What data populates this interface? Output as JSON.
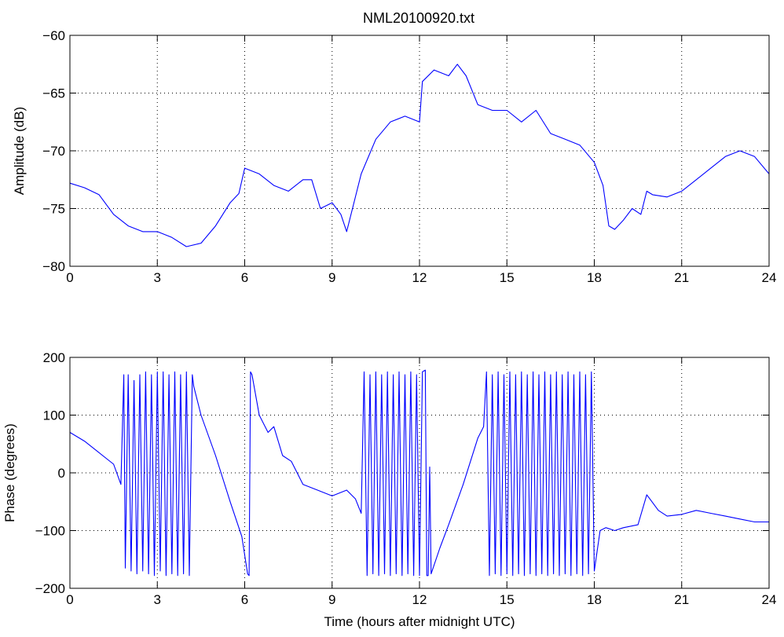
{
  "figure": {
    "title": "NML20100920.txt"
  },
  "chart_data": [
    {
      "type": "line",
      "title": "NML20100920.txt",
      "xlabel": "",
      "ylabel": "Amplitude (dB)",
      "xlim": [
        0,
        24
      ],
      "ylim": [
        -80,
        -60
      ],
      "xticks": [
        0,
        3,
        6,
        9,
        12,
        15,
        18,
        21,
        24
      ],
      "xtick_labels": [
        "0",
        "3",
        "6",
        "9",
        "12",
        "15",
        "18",
        "21",
        "24"
      ],
      "yticks": [
        -80,
        -75,
        -70,
        -65,
        -60
      ],
      "ytick_labels": [
        "−80",
        "−75",
        "−70",
        "−65",
        "−60"
      ],
      "grid": true,
      "color": "#0000ff",
      "x": [
        0,
        0.5,
        1,
        1.5,
        2,
        2.5,
        3,
        3.5,
        4,
        4.5,
        5,
        5.5,
        5.8,
        6,
        6.5,
        7,
        7.5,
        8,
        8.3,
        8.6,
        9,
        9.3,
        9.5,
        9.8,
        10,
        10.5,
        11,
        11.5,
        12,
        12.1,
        12.5,
        13,
        13.3,
        13.6,
        14,
        14.5,
        15,
        15.5,
        16,
        16.5,
        17,
        17.5,
        18,
        18.3,
        18.5,
        18.7,
        19,
        19.3,
        19.6,
        19.8,
        20,
        20.5,
        21,
        21.5,
        22,
        22.5,
        23,
        23.5,
        24
      ],
      "y": [
        -72.8,
        -73.2,
        -73.8,
        -75.5,
        -76.5,
        -77,
        -77,
        -77.5,
        -78.3,
        -78,
        -76.5,
        -74.5,
        -73.7,
        -71.5,
        -72,
        -73,
        -73.5,
        -72.5,
        -72.5,
        -75,
        -74.5,
        -75.5,
        -77,
        -74,
        -72,
        -69,
        -67.5,
        -67,
        -67.5,
        -64,
        -63,
        -63.5,
        -62.5,
        -63.5,
        -66,
        -66.5,
        -66.5,
        -67.5,
        -66.5,
        -68.5,
        -69,
        -69.5,
        -71,
        -73,
        -76.5,
        -76.8,
        -76,
        -75,
        -75.5,
        -73.5,
        -73.8,
        -74,
        -73.5,
        -72.5,
        -71.5,
        -70.5,
        -70,
        -70.5,
        -72
      ]
    },
    {
      "type": "line",
      "title": "",
      "xlabel": "Time (hours after midnight UTC)",
      "ylabel": "Phase (degrees)",
      "xlim": [
        0,
        24
      ],
      "ylim": [
        -200,
        200
      ],
      "xticks": [
        0,
        3,
        6,
        9,
        12,
        15,
        18,
        21,
        24
      ],
      "xtick_labels": [
        "0",
        "3",
        "6",
        "9",
        "12",
        "15",
        "18",
        "21",
        "24"
      ],
      "yticks": [
        -200,
        -100,
        0,
        100,
        200
      ],
      "ytick_labels": [
        "−200",
        "−100",
        "0",
        "100",
        "200"
      ],
      "grid": true,
      "color": "#0000ff",
      "x": [
        0,
        0.5,
        1,
        1.5,
        1.75,
        1.85,
        1.9,
        2.0,
        2.1,
        2.2,
        2.3,
        2.4,
        2.5,
        2.6,
        2.7,
        2.8,
        2.9,
        3.0,
        3.1,
        3.2,
        3.3,
        3.4,
        3.5,
        3.6,
        3.7,
        3.8,
        3.9,
        4.0,
        4.1,
        4.2,
        4.25,
        4.5,
        5,
        5.5,
        5.9,
        6.1,
        6.15,
        6.2,
        6.25,
        6.5,
        6.8,
        7,
        7.3,
        7.6,
        8,
        8.5,
        9,
        9.5,
        9.8,
        10.0,
        10.1,
        10.2,
        10.3,
        10.4,
        10.5,
        10.6,
        10.7,
        10.8,
        10.9,
        11.0,
        11.1,
        11.2,
        11.3,
        11.4,
        11.5,
        11.6,
        11.7,
        11.8,
        11.9,
        12.0,
        12.1,
        12.2,
        12.25,
        12.3,
        12.35,
        12.4,
        12.7,
        13,
        13.5,
        14,
        14.2,
        14.3,
        14.4,
        14.5,
        14.6,
        14.7,
        14.8,
        14.9,
        15.0,
        15.1,
        15.2,
        15.3,
        15.4,
        15.5,
        15.6,
        15.7,
        15.8,
        15.9,
        16.0,
        16.1,
        16.2,
        16.3,
        16.4,
        16.5,
        16.6,
        16.7,
        16.8,
        16.9,
        17.0,
        17.1,
        17.2,
        17.3,
        17.4,
        17.5,
        17.6,
        17.7,
        17.8,
        17.9,
        18.0,
        18.2,
        18.4,
        18.7,
        19,
        19.5,
        19.8,
        20.2,
        20.5,
        21,
        21.5,
        22,
        22.5,
        23,
        23.5,
        24
      ],
      "y": [
        70,
        55,
        35,
        15,
        -20,
        170,
        -165,
        170,
        -170,
        160,
        -175,
        170,
        -170,
        175,
        -175,
        170,
        -178,
        175,
        -170,
        175,
        -178,
        170,
        -175,
        175,
        -178,
        170,
        -175,
        175,
        -178,
        170,
        150,
        100,
        30,
        -50,
        -110,
        -175,
        -178,
        175,
        170,
        100,
        70,
        80,
        30,
        20,
        -20,
        -30,
        -40,
        -30,
        -45,
        -70,
        175,
        -178,
        170,
        -175,
        175,
        -178,
        170,
        -175,
        175,
        -178,
        170,
        -175,
        175,
        -178,
        170,
        -175,
        175,
        -178,
        170,
        -178,
        175,
        178,
        -178,
        -178,
        10,
        -175,
        -130,
        -90,
        -20,
        60,
        80,
        175,
        -178,
        170,
        -175,
        175,
        -178,
        170,
        -175,
        175,
        -178,
        170,
        -175,
        175,
        -178,
        170,
        -175,
        175,
        -178,
        170,
        -175,
        175,
        -178,
        170,
        -175,
        175,
        -178,
        170,
        -175,
        175,
        -178,
        170,
        -175,
        175,
        -178,
        170,
        -175,
        175,
        -170,
        -100,
        -95,
        -100,
        -95,
        -90,
        -38,
        -65,
        -75,
        -72,
        -65,
        -70,
        -75,
        -80,
        -85,
        -85
      ]
    }
  ]
}
